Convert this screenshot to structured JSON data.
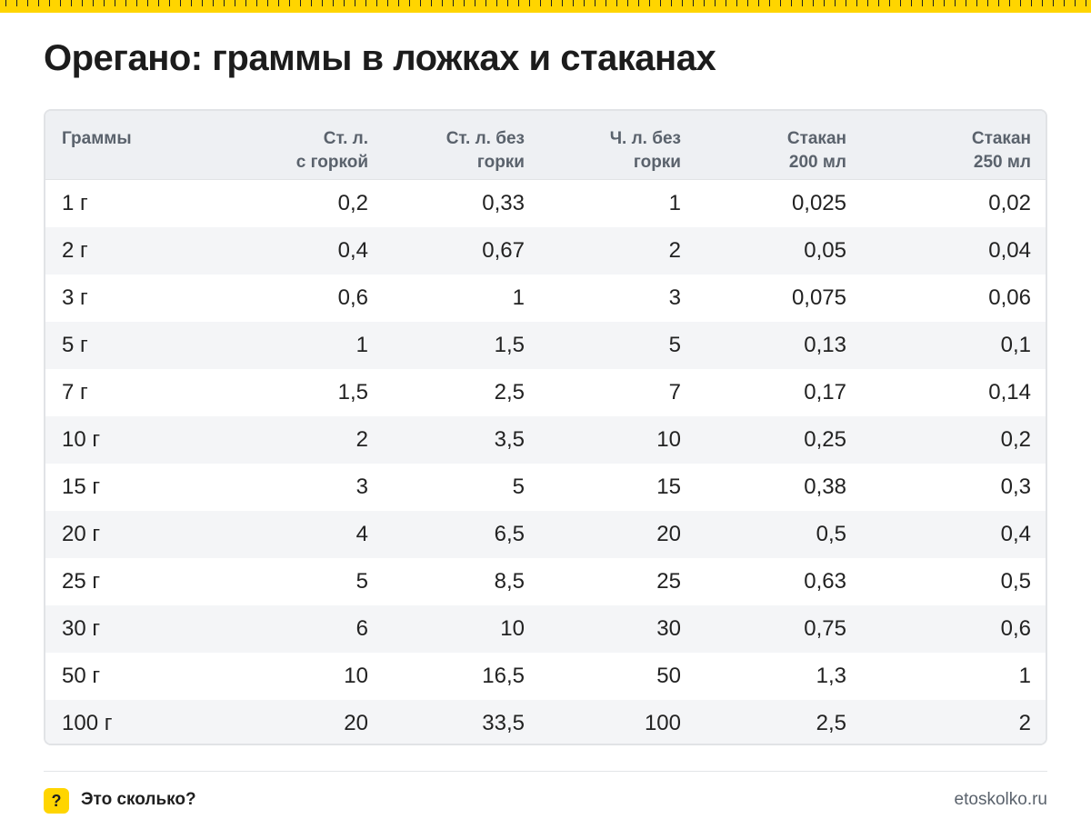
{
  "title": "Орегано: граммы в ложках и стаканах",
  "table": {
    "headers": [
      [
        "Граммы"
      ],
      [
        "Ст. л.",
        "с горкой"
      ],
      [
        "Ст. л. без",
        "горки"
      ],
      [
        "Ч. л. без",
        "горки"
      ],
      [
        "Стакан",
        "200 мл"
      ],
      [
        "Стакан",
        "250 мл"
      ]
    ],
    "rows": [
      [
        "1 г",
        "0,2",
        "0,33",
        "1",
        "0,025",
        "0,02"
      ],
      [
        "2 г",
        "0,4",
        "0,67",
        "2",
        "0,05",
        "0,04"
      ],
      [
        "3 г",
        "0,6",
        "1",
        "3",
        "0,075",
        "0,06"
      ],
      [
        "5 г",
        "1",
        "1,5",
        "5",
        "0,13",
        "0,1"
      ],
      [
        "7 г",
        "1,5",
        "2,5",
        "7",
        "0,17",
        "0,14"
      ],
      [
        "10 г",
        "2",
        "3,5",
        "10",
        "0,25",
        "0,2"
      ],
      [
        "15 г",
        "3",
        "5",
        "15",
        "0,38",
        "0,3"
      ],
      [
        "20 г",
        "4",
        "6,5",
        "20",
        "0,5",
        "0,4"
      ],
      [
        "25 г",
        "5",
        "8,5",
        "25",
        "0,63",
        "0,5"
      ],
      [
        "30 г",
        "6",
        "10",
        "30",
        "0,75",
        "0,6"
      ],
      [
        "50 г",
        "10",
        "16,5",
        "50",
        "1,3",
        "1"
      ],
      [
        "100 г",
        "20",
        "33,5",
        "100",
        "2,5",
        "2"
      ]
    ]
  },
  "footer": {
    "badge": "?",
    "brand": "Это сколько?",
    "site": "etoskolko.ru"
  },
  "colors": {
    "accent": "#ffd500",
    "header_bg": "#eef0f3",
    "stripe_bg": "#f4f5f7",
    "header_text": "#5a626c"
  }
}
